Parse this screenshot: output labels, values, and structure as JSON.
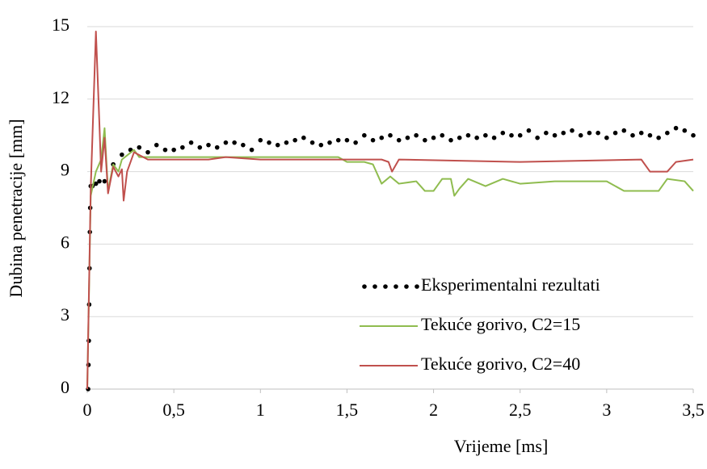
{
  "chart_data": {
    "type": "line",
    "x_label": "Vrijeme [ms]",
    "y_label": "Dubina penetracije [mm]",
    "xlim": [
      0,
      3.5
    ],
    "ylim": [
      0,
      15
    ],
    "xticks": [
      0,
      {
        "value": 0.5,
        "label": "0,5"
      },
      1,
      {
        "value": 1.5,
        "label": "1,5"
      },
      2,
      {
        "value": 2.5,
        "label": "2,5"
      },
      3,
      {
        "value": 3.5,
        "label": "3,5"
      }
    ],
    "yticks": [
      0,
      3,
      6,
      9,
      12,
      15
    ],
    "grid": true,
    "legend": "lower right",
    "series": [
      {
        "name": "Eksperimentalni rezultati",
        "color": "#000000",
        "style": "dotted",
        "x": [
          0.005,
          0.007,
          0.009,
          0.011,
          0.013,
          0.015,
          0.017,
          0.02,
          0.03,
          0.05,
          0.07,
          0.1,
          0.15,
          0.2,
          0.25,
          0.3,
          0.35,
          0.4,
          0.45,
          0.5,
          0.55,
          0.6,
          0.65,
          0.7,
          0.75,
          0.8,
          0.85,
          0.9,
          0.95,
          1.0,
          1.05,
          1.1,
          1.15,
          1.2,
          1.25,
          1.3,
          1.35,
          1.4,
          1.45,
          1.5,
          1.55,
          1.6,
          1.65,
          1.7,
          1.75,
          1.8,
          1.85,
          1.9,
          1.95,
          2.0,
          2.05,
          2.1,
          2.15,
          2.2,
          2.25,
          2.3,
          2.35,
          2.4,
          2.45,
          2.5,
          2.55,
          2.6,
          2.65,
          2.7,
          2.75,
          2.8,
          2.85,
          2.9,
          2.95,
          3.0,
          3.05,
          3.1,
          3.15,
          3.2,
          3.25,
          3.3,
          3.35,
          3.4,
          3.45,
          3.5
        ],
        "values": [
          0,
          1,
          2,
          3.5,
          5,
          6.5,
          7.5,
          8.4,
          8.4,
          8.5,
          8.6,
          8.6,
          9.3,
          9.7,
          9.9,
          10.0,
          9.8,
          10.1,
          9.9,
          9.9,
          10.0,
          10.2,
          10.0,
          10.1,
          10.0,
          10.2,
          10.2,
          10.1,
          9.9,
          10.3,
          10.2,
          10.1,
          10.2,
          10.3,
          10.4,
          10.2,
          10.1,
          10.2,
          10.3,
          10.3,
          10.2,
          10.5,
          10.3,
          10.4,
          10.5,
          10.3,
          10.4,
          10.5,
          10.3,
          10.4,
          10.5,
          10.3,
          10.4,
          10.5,
          10.4,
          10.5,
          10.4,
          10.6,
          10.5,
          10.5,
          10.7,
          10.4,
          10.6,
          10.5,
          10.6,
          10.7,
          10.5,
          10.6,
          10.6,
          10.4,
          10.6,
          10.7,
          10.5,
          10.6,
          10.5,
          10.4,
          10.6,
          10.8,
          10.7,
          10.5
        ]
      },
      {
        "name": "Tekuće gorivo, C2=15",
        "color": "#8fbc4f",
        "style": "solid",
        "x": [
          0,
          0.02,
          0.05,
          0.08,
          0.1,
          0.12,
          0.15,
          0.18,
          0.2,
          0.27,
          0.3,
          0.6,
          1.0,
          1.45,
          1.5,
          1.6,
          1.65,
          1.7,
          1.75,
          1.8,
          1.9,
          1.95,
          2.0,
          2.05,
          2.1,
          2.12,
          2.15,
          2.2,
          2.3,
          2.4,
          2.5,
          2.7,
          3.0,
          3.1,
          3.3,
          3.35,
          3.45,
          3.5
        ],
        "values": [
          0,
          8.0,
          9.0,
          9.5,
          10.8,
          8.2,
          9.3,
          9.0,
          9.5,
          9.9,
          9.6,
          9.6,
          9.6,
          9.6,
          9.4,
          9.4,
          9.3,
          8.5,
          8.8,
          8.5,
          8.6,
          8.2,
          8.2,
          8.7,
          8.7,
          8.0,
          8.3,
          8.7,
          8.4,
          8.7,
          8.5,
          8.6,
          8.6,
          8.2,
          8.2,
          8.7,
          8.6,
          8.2
        ]
      },
      {
        "name": "Tekuće gorivo, C2=40",
        "color": "#c0504d",
        "style": "solid",
        "x": [
          0,
          0.02,
          0.05,
          0.07,
          0.08,
          0.1,
          0.12,
          0.15,
          0.18,
          0.2,
          0.21,
          0.23,
          0.27,
          0.35,
          0.7,
          0.8,
          1.0,
          1.5,
          1.7,
          1.74,
          1.76,
          1.8,
          2.5,
          3.2,
          3.25,
          3.35,
          3.4,
          3.5
        ],
        "values": [
          0,
          8.3,
          14.8,
          11.0,
          9.0,
          10.4,
          8.1,
          9.2,
          8.8,
          9.1,
          7.8,
          9.0,
          9.8,
          9.5,
          9.5,
          9.6,
          9.5,
          9.5,
          9.5,
          9.4,
          9.0,
          9.5,
          9.4,
          9.5,
          9.0,
          9.0,
          9.4,
          9.5
        ]
      }
    ]
  }
}
